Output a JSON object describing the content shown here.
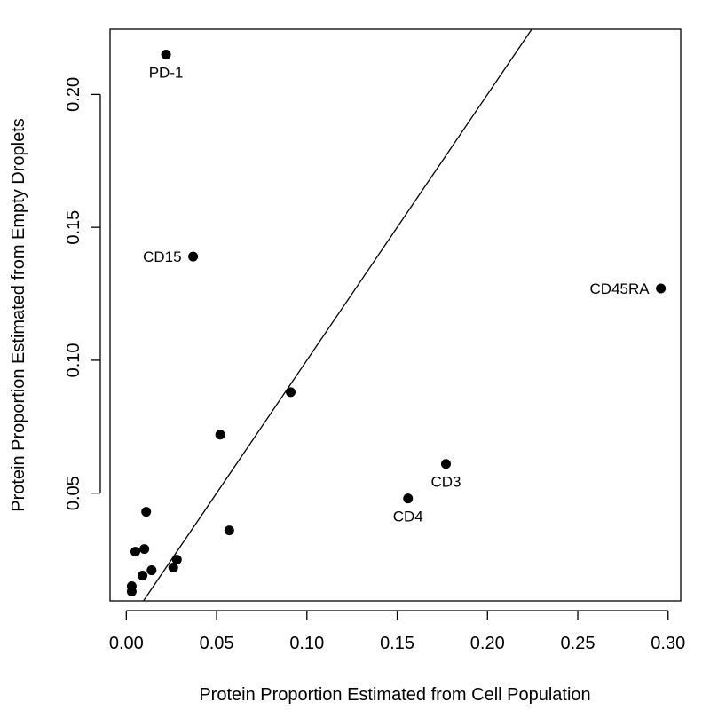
{
  "chart_data": {
    "type": "scatter",
    "title": "",
    "xlabel": "Protein Proportion Estimated from Cell Population",
    "ylabel": "Protein Proportion Estimated from Empty Droplets",
    "xlim": [
      -0.009,
      0.307
    ],
    "ylim": [
      0.0095,
      0.2245
    ],
    "x_ticks": [
      0.0,
      0.05,
      0.1,
      0.15,
      0.2,
      0.25,
      0.3
    ],
    "x_tick_labels": [
      "0.00",
      "0.05",
      "0.10",
      "0.15",
      "0.20",
      "0.25",
      "0.30"
    ],
    "y_ticks": [
      0.05,
      0.1,
      0.15,
      0.2
    ],
    "y_tick_labels": [
      "0.05",
      "0.10",
      "0.15",
      "0.20"
    ],
    "grid": false,
    "reference_line": {
      "slope": 1.0,
      "intercept": 0.0
    },
    "points": [
      {
        "x": 0.022,
        "y": 0.215,
        "label": "PD-1",
        "label_pos": "below"
      },
      {
        "x": 0.037,
        "y": 0.139,
        "label": "CD15",
        "label_pos": "left"
      },
      {
        "x": 0.296,
        "y": 0.127,
        "label": "CD45RA",
        "label_pos": "left"
      },
      {
        "x": 0.091,
        "y": 0.088,
        "label": "",
        "label_pos": ""
      },
      {
        "x": 0.052,
        "y": 0.072,
        "label": "",
        "label_pos": ""
      },
      {
        "x": 0.177,
        "y": 0.061,
        "label": "CD3",
        "label_pos": "below"
      },
      {
        "x": 0.156,
        "y": 0.048,
        "label": "CD4",
        "label_pos": "below"
      },
      {
        "x": 0.057,
        "y": 0.036,
        "label": "",
        "label_pos": ""
      },
      {
        "x": 0.011,
        "y": 0.043,
        "label": "",
        "label_pos": ""
      },
      {
        "x": 0.01,
        "y": 0.029,
        "label": "",
        "label_pos": ""
      },
      {
        "x": 0.005,
        "y": 0.028,
        "label": "",
        "label_pos": ""
      },
      {
        "x": 0.028,
        "y": 0.025,
        "label": "",
        "label_pos": ""
      },
      {
        "x": 0.026,
        "y": 0.022,
        "label": "",
        "label_pos": ""
      },
      {
        "x": 0.014,
        "y": 0.021,
        "label": "",
        "label_pos": ""
      },
      {
        "x": 0.009,
        "y": 0.019,
        "label": "",
        "label_pos": ""
      },
      {
        "x": 0.003,
        "y": 0.015,
        "label": "",
        "label_pos": ""
      },
      {
        "x": 0.003,
        "y": 0.013,
        "label": "",
        "label_pos": ""
      }
    ],
    "colors": {
      "point": "#000000",
      "line": "#000000",
      "axis": "#000000"
    }
  }
}
